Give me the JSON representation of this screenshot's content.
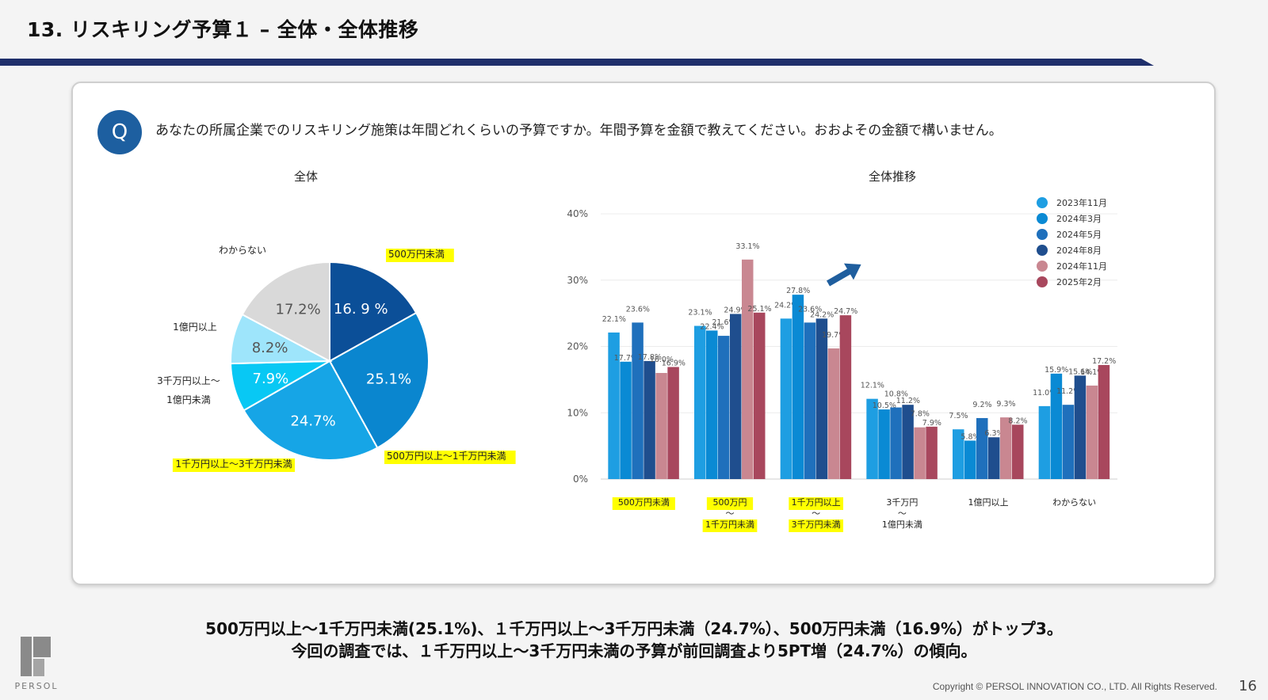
{
  "page": {
    "title": "13. リスキリング予算１ – 全体・全体推移",
    "question_badge": "Q",
    "question": "あなたの所属企業でのリスキリング施策は年間どれくらいの予算ですか。年間予算を金額で教えてください。おおよその金額で構いません。",
    "summary_line1": "500万円以上～1千万円未満(25.1%)、１千万円以上～3千万円未満（24.7%）、500万円未満（16.9%）がトップ3。",
    "summary_line2": "今回の調査では、１千万円以上～3千万円未満の予算が前回調査より5PT増（24.7%）の傾向。",
    "copyright": "Copyright © PERSOL INNOVATION CO., LTD. All Rights Reserved.",
    "page_number": "16",
    "logo_text": "PERSOL",
    "colors": {
      "accent_navy": "#1f2f6b",
      "highlight": "#ffff00"
    }
  },
  "chart_data": [
    {
      "type": "pie",
      "title": "全体",
      "slices": [
        {
          "label": "500万円未満",
          "value": 16.9,
          "display": "16. 9 %",
          "color": "#0b4f98",
          "highlight": true
        },
        {
          "label": "500万円以上～1千万円未満",
          "value": 25.1,
          "display": "25.1%",
          "color": "#0a86cf",
          "highlight": true
        },
        {
          "label": "1千万円以上～3千万円未満",
          "value": 24.7,
          "display": "24.7%",
          "color": "#16a5e6",
          "highlight": true
        },
        {
          "label": "3千万円以上～1億円未満",
          "label_lines": [
            "3千万円以上～",
            "1億円未満"
          ],
          "value": 7.9,
          "display": "7.9%",
          "color": "#08c8f4",
          "highlight": false
        },
        {
          "label": "1億円以上",
          "value": 8.2,
          "display": "8.2%",
          "color": "#9ee5fb",
          "highlight": false
        },
        {
          "label": "わからない",
          "value": 17.2,
          "display": "17.2%",
          "color": "#d9d9d9",
          "highlight": false
        }
      ]
    },
    {
      "type": "bar",
      "title": "全体推移",
      "ylim": [
        0,
        40
      ],
      "yticks": [
        "0%",
        "10%",
        "20%",
        "30%",
        "40%"
      ],
      "categories": [
        {
          "lines": [
            "500万円未満"
          ],
          "highlight": true
        },
        {
          "lines": [
            "500万円",
            "～",
            "1千万円未満"
          ],
          "highlight": true
        },
        {
          "lines": [
            "1千万円以上",
            "～",
            "3千万円未満"
          ],
          "highlight": true
        },
        {
          "lines": [
            "3千万円",
            "～",
            "1億円未満"
          ],
          "highlight": false
        },
        {
          "lines": [
            "1億円以上"
          ],
          "highlight": false
        },
        {
          "lines": [
            "わからない"
          ],
          "highlight": false
        }
      ],
      "series": [
        {
          "name": "2023年11月",
          "color": "#1e9ee2",
          "values": [
            22.1,
            23.1,
            24.2,
            12.1,
            7.5,
            11.0
          ]
        },
        {
          "name": "2024年3月",
          "color": "#0a8ad4",
          "values": [
            17.7,
            22.4,
            27.8,
            10.5,
            5.8,
            15.9
          ]
        },
        {
          "name": "2024年5月",
          "color": "#1f70bc",
          "values": [
            23.6,
            21.6,
            23.6,
            10.8,
            9.2,
            11.2
          ]
        },
        {
          "name": "2024年8月",
          "color": "#1f4e8e",
          "values": [
            17.8,
            24.9,
            24.2,
            11.2,
            6.3,
            15.6
          ]
        },
        {
          "name": "2024年11月",
          "color": "#c98791",
          "values": [
            16.0,
            33.1,
            19.7,
            7.8,
            9.3,
            14.1
          ]
        },
        {
          "name": "2025年2月",
          "color": "#a8475d",
          "values": [
            16.9,
            25.1,
            24.7,
            7.9,
            8.2,
            17.2
          ]
        }
      ],
      "legend_position": "top-right",
      "grid": true,
      "trend_arrow_icon": "up-right-arrow"
    }
  ]
}
